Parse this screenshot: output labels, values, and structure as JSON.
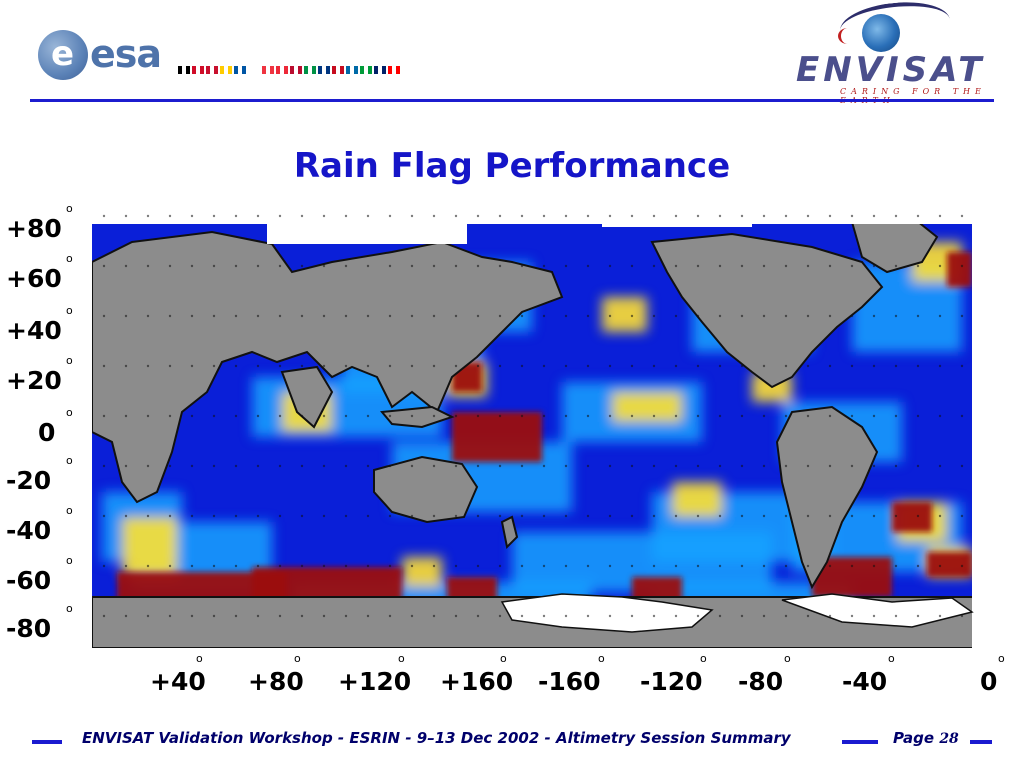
{
  "header": {
    "esa_logo_letter": "e",
    "esa_logo_text": "esa",
    "flag_colors": [
      "#000000",
      "#d00c27",
      "#c8102e",
      "#fc0",
      "#0055a4",
      "#fff",
      "#ef3340",
      "#ed2939",
      "#ba0c2f",
      "#009246",
      "#003580",
      "#c60b1e",
      "#006aa7",
      "#009b3a",
      "#012169",
      "#ff0000"
    ],
    "envisat_logo_text": "ENVISAT",
    "envisat_tagline": "CARING FOR THE EARTH"
  },
  "slide": {
    "title": "Rain Flag Performance"
  },
  "map": {
    "latitude_labels": [
      "+80",
      "+60",
      "+40",
      "+20",
      "0",
      "-20",
      "-40",
      "-60",
      "-80"
    ],
    "longitude_labels": [
      "+40",
      "+80",
      "+120",
      "+160",
      "-160",
      "-120",
      "-80",
      "-40",
      "0"
    ],
    "degree_symbol": "o",
    "colors": {
      "land": "#8c8c8c",
      "ice": "#ffffff",
      "ocean_low": "#0a1fd8",
      "ocean_mid": "#16a2ff",
      "ocean_high": "#ffe030",
      "ocean_peak": "#9b0f0f"
    }
  },
  "footer": {
    "text": "ENVISAT Validation Workshop - ESRIN - 9–13 Dec 2002 - Altimetry Session Summary",
    "page_label": "Page",
    "page_number": "28",
    "accent_color": "#1a1ad0"
  }
}
